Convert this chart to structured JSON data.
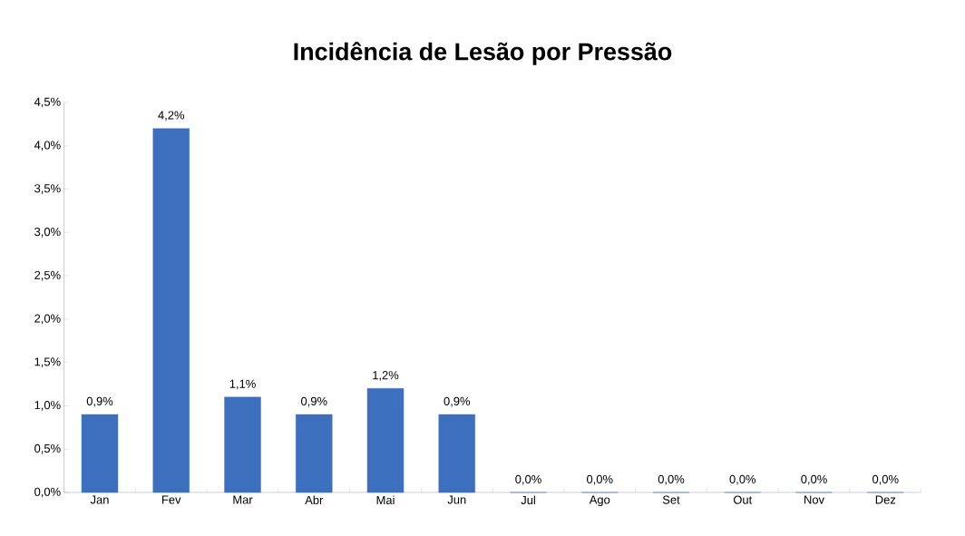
{
  "chart_data": {
    "type": "bar",
    "title": "Incidência de Lesão por Pressão",
    "categories": [
      "Jan",
      "Fev",
      "Mar",
      "Abr",
      "Mai",
      "Jun",
      "Jul",
      "Ago",
      "Set",
      "Out",
      "Nov",
      "Dez"
    ],
    "values": [
      0.9,
      4.2,
      1.1,
      0.9,
      1.2,
      0.9,
      0,
      0,
      0,
      0,
      0,
      0
    ],
    "value_labels": [
      "0,9%",
      "4,2%",
      "1,1%",
      "0,9%",
      "1,2%",
      "0,9%",
      "0,0%",
      "0,0%",
      "0,0%",
      "0,0%",
      "0,0%",
      "0,0%"
    ],
    "color": "#3d6fbf",
    "ylim": [
      0,
      4.5
    ],
    "yticks": [
      {
        "value": 0,
        "label": "0,0%"
      },
      {
        "value": 0.5,
        "label": "0,5%"
      },
      {
        "value": 1,
        "label": "1,0%"
      },
      {
        "value": 1.5,
        "label": "1,5%"
      },
      {
        "value": 2,
        "label": "2,0%"
      },
      {
        "value": 2.5,
        "label": "2,5%"
      },
      {
        "value": 3,
        "label": "3,0%"
      },
      {
        "value": 3.5,
        "label": "3,5%"
      },
      {
        "value": 4,
        "label": "4,0%"
      },
      {
        "value": 4.5,
        "label": "4,5%"
      }
    ]
  }
}
